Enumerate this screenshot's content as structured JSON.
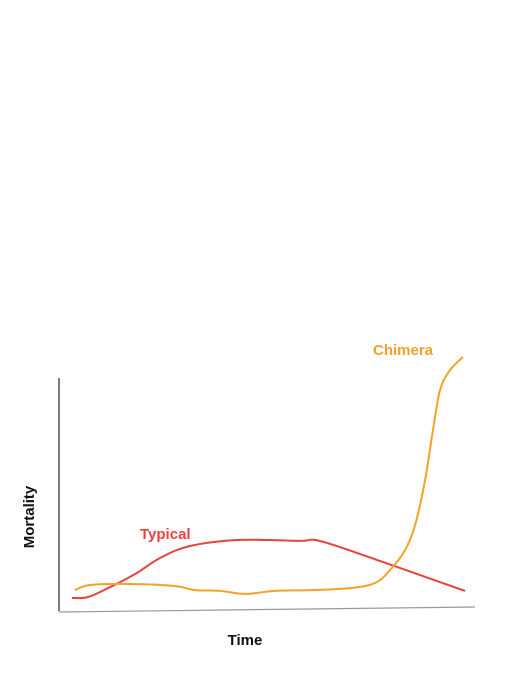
{
  "chart_data": {
    "type": "line",
    "xlabel": "Time",
    "ylabel": "Mortality",
    "xlim": [
      0,
      100
    ],
    "ylim": [
      0,
      100
    ],
    "series": [
      {
        "name": "Typical",
        "color": "#e8423f",
        "x": [
          3.1,
          7.0,
          12.3,
          18.3,
          24.3,
          31.5,
          43.5,
          57.9,
          61.5,
          67.5,
          77.2,
          86.8,
          97.6
        ],
        "values": [
          4.7,
          5.1,
          9.0,
          14.1,
          20.4,
          25.1,
          27.5,
          27.1,
          27.5,
          24.7,
          19.2,
          13.7,
          7.5
        ]
      },
      {
        "name": "Chimera",
        "color": "#f2a229",
        "x": [
          3.8,
          7.5,
          17.1,
          27.9,
          32.7,
          38.7,
          44.7,
          51.9,
          60.3,
          70.0,
          76.0,
          79.6,
          83.2,
          85.6,
          88.0,
          89.9,
          91.6,
          94.0,
          97.1
        ],
        "values": [
          7.8,
          9.8,
          10.2,
          9.4,
          7.8,
          7.5,
          6.3,
          7.5,
          7.8,
          8.6,
          10.6,
          15.7,
          23.5,
          33.3,
          51.0,
          70.6,
          86.3,
          94.1,
          99.2
        ]
      }
    ]
  }
}
